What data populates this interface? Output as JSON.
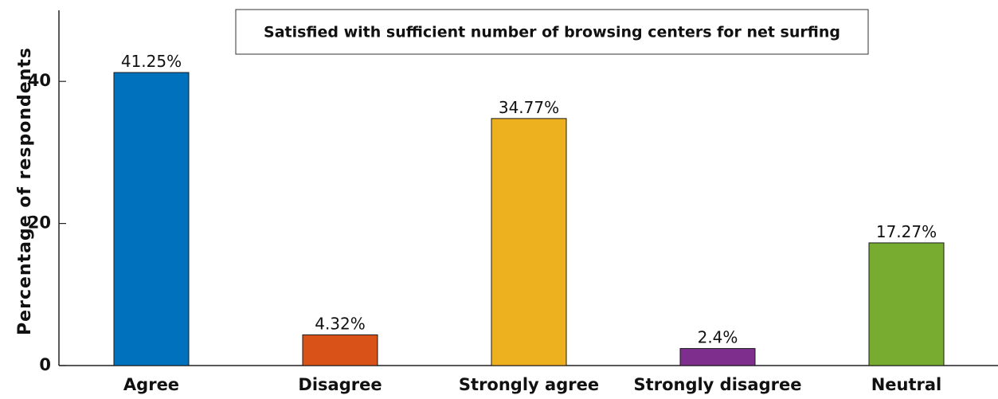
{
  "chart_data": {
    "type": "bar",
    "title": "Satisfied with sufficient number of browsing centers for net surfing",
    "xlabel": "",
    "ylabel": "Percentage of respondents",
    "categories": [
      "Agree",
      "Disagree",
      "Strongly agree",
      "Strongly disagree",
      "Neutral"
    ],
    "values": [
      41.25,
      4.32,
      34.77,
      2.4,
      17.27
    ],
    "data_labels": [
      "41.25%",
      "4.32%",
      "34.77%",
      "2.4%",
      "17.27%"
    ],
    "colors": [
      "#0072bd",
      "#d95319",
      "#edb120",
      "#7e2f8e",
      "#77ac30"
    ],
    "ylim": [
      0,
      50
    ],
    "yticks": [
      0,
      20,
      40
    ],
    "ytick_labels": [
      "0",
      "20",
      "40"
    ],
    "grid": false,
    "legend": "none"
  }
}
